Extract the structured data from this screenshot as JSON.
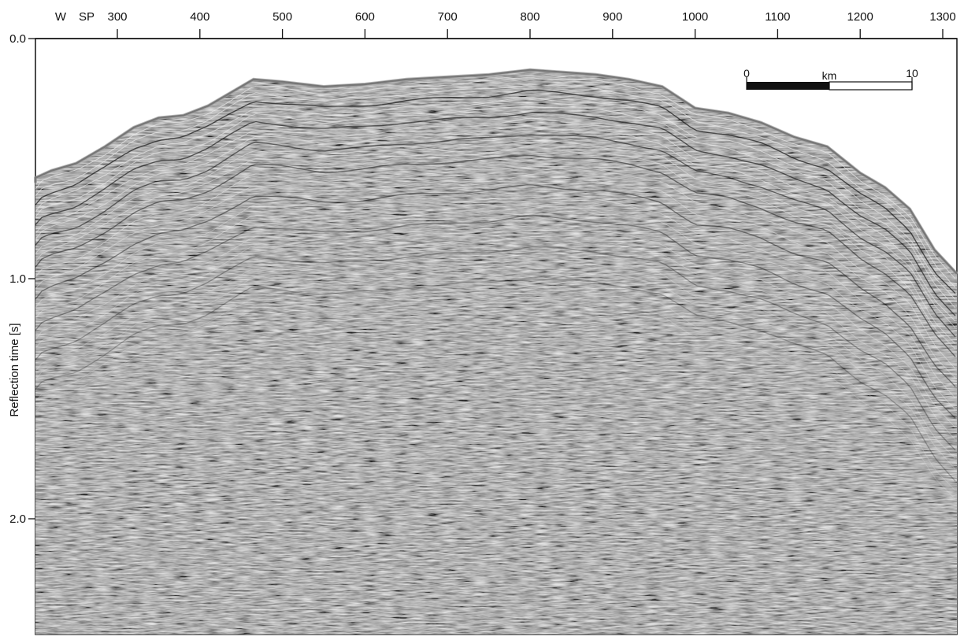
{
  "figure": {
    "direction_label": "W",
    "axis_label": "SP",
    "ylabel": "Reflection time [s]",
    "x_ticks": [
      300,
      400,
      500,
      600,
      700,
      800,
      900,
      1000,
      1100,
      1200,
      1300
    ],
    "y_ticks": [
      {
        "value": 0.0,
        "label": "0.0"
      },
      {
        "value": 1.0,
        "label": "1.0"
      },
      {
        "value": 2.0,
        "label": "2.0"
      }
    ],
    "x_range": [
      156,
      1308
    ],
    "y_range": [
      0.0,
      2.5
    ],
    "scale_bar": {
      "start_label": "0",
      "unit_label": "km",
      "end_label": "10"
    },
    "seafloor_profile": [
      [
        156,
        0.6
      ],
      [
        185,
        0.58
      ],
      [
        220,
        0.55
      ],
      [
        250,
        0.52
      ],
      [
        285,
        0.45
      ],
      [
        320,
        0.37
      ],
      [
        350,
        0.33
      ],
      [
        380,
        0.32
      ],
      [
        410,
        0.28
      ],
      [
        440,
        0.22
      ],
      [
        465,
        0.17
      ],
      [
        500,
        0.18
      ],
      [
        550,
        0.2
      ],
      [
        600,
        0.19
      ],
      [
        650,
        0.17
      ],
      [
        700,
        0.16
      ],
      [
        750,
        0.15
      ],
      [
        800,
        0.13
      ],
      [
        840,
        0.14
      ],
      [
        880,
        0.15
      ],
      [
        920,
        0.17
      ],
      [
        960,
        0.2
      ],
      [
        1000,
        0.29
      ],
      [
        1040,
        0.31
      ],
      [
        1080,
        0.35
      ],
      [
        1120,
        0.41
      ],
      [
        1160,
        0.45
      ],
      [
        1200,
        0.56
      ],
      [
        1230,
        0.62
      ],
      [
        1260,
        0.71
      ],
      [
        1290,
        0.88
      ],
      [
        1308,
        0.98
      ]
    ],
    "colors": {
      "background": "#ffffff",
      "section": "#8d8d8d",
      "water": "#ffffff",
      "axis": "#111111"
    }
  }
}
